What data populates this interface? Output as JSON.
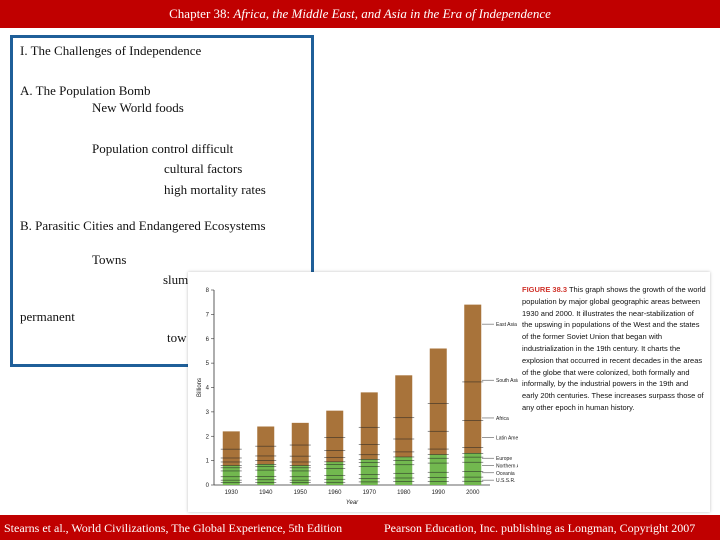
{
  "header": {
    "prefix": "Chapter 38: ",
    "title_italic": "Africa, the Middle East, and Asia in the Era of Independence"
  },
  "outline": {
    "heading": "I. The Challenges of Independence",
    "a_title": "A. The Population Bomb",
    "a_item1": "New World foods",
    "a_item2": "Population control difficult",
    "a_item2_sub1": "cultural factors",
    "a_item2_sub2": "high mortality rates",
    "b_title": "B. Parasitic Cities and Endangered Ecosystems",
    "b_item1": "Towns",
    "b_item1_sub1": "slum",
    "b_item2": "permanent",
    "b_item2_sub1": "tow"
  },
  "figure": {
    "caption_label": "FIGURE 38.3",
    "caption_text": " This graph shows the growth of the world population by major global geographic areas between 1930 and 2000. It illustrates the near-stabilization of the upswing in populations of the West and the states of the former Soviet Union that began with industrialization in the 19th century. It charts the explosion that occurred in recent decades in the areas of the globe that were colonized, both formally and informally, by the industrial powers in the 19th and early 20th centuries. These increases surpass those of any other epoch in human history."
  },
  "chart_data": {
    "type": "bar",
    "title": "",
    "xlabel": "Year",
    "ylabel": "Billions",
    "ylim": [
      0,
      8
    ],
    "yticks": [
      0,
      1,
      2,
      3,
      4,
      5,
      6,
      7,
      8
    ],
    "categories": [
      "1930",
      "1940",
      "1950",
      "1960",
      "1970",
      "1980",
      "1990",
      "2000"
    ],
    "totals": [
      2.2,
      2.4,
      2.55,
      3.05,
      3.8,
      4.5,
      5.6,
      7.4
    ],
    "green_base": [
      0.8,
      0.85,
      0.8,
      0.95,
      1.05,
      1.15,
      1.25,
      1.3
    ],
    "colors": {
      "upper": "#a8733a",
      "lower": "#72b84f"
    },
    "region_labels": [
      {
        "text": "East Asia",
        "y": 6.6
      },
      {
        "text": "South Asia",
        "y": 4.3
      },
      {
        "text": "Africa",
        "y": 2.75
      },
      {
        "text": "Latin America",
        "y": 1.95
      },
      {
        "text": "Europe",
        "y": 1.1
      },
      {
        "text": "Northern America",
        "y": 0.8
      },
      {
        "text": "Oceania",
        "y": 0.5
      },
      {
        "text": "U.S.S.R.",
        "y": 0.2
      }
    ]
  },
  "footer": {
    "left": "Stearns et al., World Civilizations, The Global Experience, 5th Edition",
    "right": "Pearson Education, Inc. publishing as Longman, Copyright 2007"
  }
}
